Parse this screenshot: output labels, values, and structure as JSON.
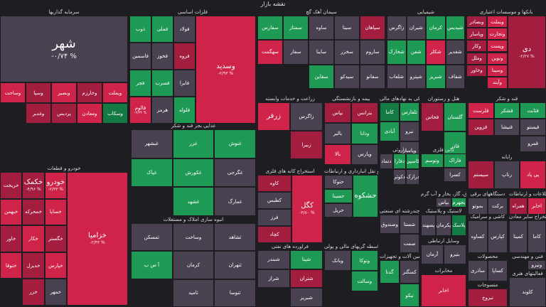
{
  "title": "نقشه بازار",
  "sectors": [
    {
      "label": "سرمایه گذاریها",
      "tiles": [
        {
          "sym": "شهر",
          "chg": "-۰/۷۴ %",
          "c": "n",
          "size": "big"
        },
        {
          "sym": "وبملت",
          "chg": "",
          "c": "r1"
        },
        {
          "sym": "وخارزم",
          "chg": "",
          "c": "r2"
        },
        {
          "sym": "وبصیر",
          "chg": "",
          "c": "r1"
        },
        {
          "sym": "وسپا",
          "chg": "",
          "c": "r2"
        },
        {
          "sym": "وساخت",
          "chg": "",
          "c": "r1"
        },
        {
          "sym": "وسکاب",
          "chg": "",
          "c": "g2"
        },
        {
          "sym": "ومعادن",
          "chg": "",
          "c": "r1"
        },
        {
          "sym": "پردیس",
          "chg": "",
          "c": "r2"
        },
        {
          "sym": "وغدیر",
          "chg": "",
          "c": "r2"
        }
      ]
    },
    {
      "label": "فلزات اساسی",
      "tiles": [
        {
          "sym": "وسدید",
          "chg": "-۲/۹۳ %",
          "c": "r1",
          "size": "mid"
        },
        {
          "sym": "فولاد",
          "chg": "",
          "c": "n"
        },
        {
          "sym": "فملی",
          "chg": "",
          "c": "g1"
        },
        {
          "sym": "ذوب",
          "chg": "",
          "c": "g1"
        },
        {
          "sym": "فروه",
          "chg": "",
          "c": "r2"
        },
        {
          "sym": "فخوز",
          "chg": "",
          "c": "n"
        },
        {
          "sym": "فاسمین",
          "chg": "",
          "c": "n"
        },
        {
          "sym": "فایرا",
          "chg": "",
          "c": "n"
        },
        {
          "sym": "فسرب",
          "chg": "",
          "c": "g1"
        },
        {
          "sym": "فجر",
          "chg": "",
          "c": "g1"
        },
        {
          "sym": "فلوله",
          "chg": "",
          "c": "g1"
        },
        {
          "sym": "هرمز",
          "chg": "",
          "c": "n"
        },
        {
          "sym": "فالوم",
          "chg": "-۴/۳۲ %",
          "c": "r1"
        }
      ]
    },
    {
      "label": "سیمان آهک گچ",
      "tiles": [
        {
          "sym": "سپاهان",
          "chg": "",
          "c": "r2"
        },
        {
          "sym": "سیتا",
          "chg": "",
          "c": "n"
        },
        {
          "sym": "ساوه",
          "chg": "",
          "c": "n"
        },
        {
          "sym": "سمتاز",
          "chg": "",
          "c": "g1"
        },
        {
          "sym": "سفارس",
          "chg": "",
          "c": "g1"
        },
        {
          "sym": "ساروم",
          "chg": "",
          "c": "n"
        },
        {
          "sym": "سخزر",
          "chg": "",
          "c": "n"
        },
        {
          "sym": "ساینا",
          "chg": "",
          "c": "n"
        },
        {
          "sym": "سفار",
          "chg": "",
          "c": "n"
        },
        {
          "sym": "سهگمت",
          "chg": "",
          "c": "r1"
        },
        {
          "sym": "سفانو",
          "chg": "",
          "c": "n"
        },
        {
          "sym": "سیدکو",
          "chg": "",
          "c": "n"
        },
        {
          "sym": "سقاین",
          "chg": "",
          "c": "g1"
        }
      ]
    },
    {
      "label": "شیمیایی",
      "tiles": [
        {
          "sym": "شپدیس",
          "chg": "",
          "c": "g1"
        },
        {
          "sym": "کرمان",
          "chg": "",
          "c": "g1"
        },
        {
          "sym": "شیران",
          "chg": "",
          "c": "n"
        },
        {
          "sym": "زاگرس",
          "chg": "",
          "c": "n"
        },
        {
          "sym": "شغدیر",
          "chg": "",
          "c": "n"
        },
        {
          "sym": "شکلر",
          "chg": "",
          "c": "r1"
        },
        {
          "sym": "شفن",
          "chg": "",
          "c": "g1"
        },
        {
          "sym": "شخارک",
          "chg": "",
          "c": "g1"
        },
        {
          "sym": "شفاف",
          "chg": "",
          "c": "n"
        },
        {
          "sym": "شبریز",
          "chg": "",
          "c": "g1"
        },
        {
          "sym": "شپترو",
          "chg": "",
          "c": "n"
        },
        {
          "sym": "شلعاب",
          "chg": "",
          "c": "n"
        }
      ]
    },
    {
      "label": "بانکها و موسسات اعتباری",
      "tiles": [
        {
          "sym": "دی",
          "chg": "-۲/۲۷ %",
          "c": "r2",
          "size": "mid"
        },
        {
          "sym": "وبملت",
          "chg": "",
          "c": "r1"
        },
        {
          "sym": "وبصادر",
          "chg": "",
          "c": "r2"
        },
        {
          "sym": "وتجارت",
          "chg": "",
          "c": "r1"
        },
        {
          "sym": "وپاسار",
          "chg": "",
          "c": "r2"
        },
        {
          "sym": "وپست",
          "chg": "",
          "c": "r1"
        },
        {
          "sym": "وکار",
          "chg": "",
          "c": "r2"
        },
        {
          "sym": "ونوین",
          "chg": "",
          "c": "r1"
        },
        {
          "sym": "وملل",
          "chg": "",
          "c": "r2"
        },
        {
          "sym": "وسینا",
          "chg": "",
          "c": "r1"
        },
        {
          "sym": "وخاور",
          "chg": "",
          "c": "r2"
        },
        {
          "sym": "وآیند",
          "chg": "",
          "c": "r1"
        }
      ]
    },
    {
      "label": "خودرو و قطعات",
      "tiles": [
        {
          "sym": "خزامیا",
          "chg": "-۲/۴۳ %",
          "c": "r1",
          "size": "mid"
        },
        {
          "sym": "خودرو",
          "chg": "-۲/۳۳ %",
          "c": "r1",
          "size": "mid"
        },
        {
          "sym": "خکمک",
          "chg": "-۴/۹۶ %",
          "c": "r2",
          "size": "mid"
        },
        {
          "sym": "خریخت",
          "chg": "",
          "c": "r2"
        },
        {
          "sym": "خساپا",
          "chg": "",
          "c": "r1"
        },
        {
          "sym": "خمحرکه",
          "chg": "",
          "c": "r2"
        },
        {
          "sym": "خبهمن",
          "chg": "",
          "c": "r1"
        },
        {
          "sym": "خگستر",
          "chg": "",
          "c": "r2"
        },
        {
          "sym": "خکار",
          "chg": "",
          "c": "r1"
        },
        {
          "sym": "خاور",
          "chg": "",
          "c": "r2"
        },
        {
          "sym": "خپارس",
          "chg": "",
          "c": "r1"
        },
        {
          "sym": "خدیزل",
          "chg": "",
          "c": "r2"
        },
        {
          "sym": "ختوقا",
          "chg": "",
          "c": "r1"
        },
        {
          "sym": "خمهر",
          "chg": "",
          "c": "n"
        },
        {
          "sym": "خزر",
          "chg": "",
          "c": "r2"
        }
      ]
    },
    {
      "label": "غذایی بجز قند و شکر",
      "tiles": [
        {
          "sym": "غنوش",
          "chg": "",
          "c": "g1"
        },
        {
          "sym": "غزر",
          "chg": "",
          "c": "g1"
        },
        {
          "sym": "غبشهر",
          "chg": "",
          "c": "n"
        },
        {
          "sym": "غگرجی",
          "chg": "",
          "c": "n"
        },
        {
          "sym": "غکورش",
          "chg": "",
          "c": "g1"
        },
        {
          "sym": "غپاک",
          "chg": "",
          "c": "g1"
        },
        {
          "sym": "غمارگ",
          "chg": "",
          "c": "n"
        },
        {
          "sym": "غشهد",
          "chg": "",
          "c": "g1"
        }
      ]
    },
    {
      "label": "عرضه برق",
      "tiles": [
        {
          "sym": "عالیس",
          "chg": "+۳/۱۷ %",
          "c": "g1",
          "size": "mid"
        }
      ]
    },
    {
      "label": "انبوه سازی املاک و مستغلات",
      "tiles": [
        {
          "sym": "ثشاهد",
          "chg": "",
          "c": "n"
        },
        {
          "sym": "وساخت",
          "chg": "",
          "c": "n"
        },
        {
          "sym": "ثمسکن",
          "chg": "",
          "c": "n"
        },
        {
          "sym": "ثتهران",
          "chg": "",
          "c": "n"
        },
        {
          "sym": "کرمان",
          "chg": "",
          "c": "n"
        },
        {
          "sym": "آ س پ",
          "chg": "",
          "c": "g1"
        },
        {
          "sym": "ثنوسا",
          "chg": "",
          "c": "n"
        },
        {
          "sym": "ثامید",
          "chg": "",
          "c": "n"
        }
      ]
    },
    {
      "label": "تلفارس",
      "tiles": [
        {
          "sym": "تلفارس",
          "chg": "",
          "c": "g1",
          "size": "mid"
        },
        {
          "sym": "کیسون",
          "chg": "",
          "c": "g1"
        },
        {
          "sym": "ترتیس",
          "chg": "",
          "c": "g1"
        },
        {
          "sym": "تاپیکو",
          "chg": "",
          "c": "g1"
        },
        {
          "sym": "تجلوب",
          "chg": "",
          "c": "g1"
        },
        {
          "sym": "تشار",
          "chg": "",
          "c": "n"
        },
        {
          "sym": "تپولاد",
          "chg": "",
          "c": "n"
        }
      ]
    },
    {
      "label": "زراعت و خدمات وابسته",
      "tiles": [
        {
          "sym": "زاگرس",
          "chg": "",
          "c": "n"
        },
        {
          "sym": "زرفر",
          "chg": "",
          "c": "r1",
          "size": "mid"
        },
        {
          "sym": "زبیرا",
          "chg": "",
          "c": "r2"
        }
      ]
    },
    {
      "label": "بیمه و بازنشستگی",
      "tiles": [
        {
          "sym": "بترانس",
          "chg": "",
          "c": "r2"
        },
        {
          "sym": "بپاس",
          "chg": "",
          "c": "r2"
        },
        {
          "sym": "ودانا",
          "chg": "",
          "c": "g1"
        },
        {
          "sym": "بالبر",
          "chg": "",
          "c": "n"
        },
        {
          "sym": "وپارس",
          "chg": "",
          "c": "n"
        },
        {
          "sym": "بالا",
          "chg": "",
          "c": "r1"
        }
      ]
    },
    {
      "label": "فعالیتهای کمکی به نهادهای مالی",
      "tiles": [
        {
          "sym": "تلفارس",
          "chg": "",
          "c": "g1"
        },
        {
          "sym": "کاما",
          "chg": "",
          "c": "g2"
        },
        {
          "sym": "نیرو",
          "chg": "",
          "c": "n"
        },
        {
          "sym": "آبادی",
          "chg": "",
          "c": "g1"
        },
        {
          "sym": "وپاسار",
          "chg": "",
          "c": "n"
        }
      ]
    },
    {
      "label": "هتل و رستوران",
      "tiles": [
        {
          "sym": "گلستان",
          "chg": "",
          "c": "g1"
        },
        {
          "sym": "فخاس",
          "chg": "",
          "c": "r2"
        },
        {
          "sym": "فاذر",
          "chg": "",
          "c": "g1"
        }
      ]
    },
    {
      "label": "قند و شکر",
      "tiles": [
        {
          "sym": "قثابت",
          "chg": "",
          "c": "g1"
        },
        {
          "sym": "قشکر",
          "chg": "",
          "c": "g1"
        },
        {
          "sym": "قلرست",
          "chg": "",
          "c": "r1"
        },
        {
          "sym": "قیستو",
          "chg": "",
          "c": "n"
        },
        {
          "sym": "قنیشا",
          "chg": "",
          "c": "n"
        },
        {
          "sym": "قزوین",
          "chg": "",
          "c": "r2"
        },
        {
          "sym": "قمرو",
          "chg": "",
          "c": "n"
        }
      ]
    },
    {
      "label": "استخراج کانه های فلزی",
      "tiles": [
        {
          "sym": "کگل",
          "chg": "-۳/۸۰ %",
          "c": "r1",
          "size": "mid"
        },
        {
          "sym": "کاوه",
          "chg": "",
          "c": "r2"
        },
        {
          "sym": "کطبس",
          "chg": "",
          "c": "n"
        },
        {
          "sym": "فرز",
          "chg": "",
          "c": "n"
        },
        {
          "sym": "کچاد",
          "chg": "",
          "c": "r2"
        }
      ]
    },
    {
      "label": "حمل و نقل انبارداری و ارتباطات",
      "tiles": [
        {
          "sym": "حشکوه",
          "chg": "",
          "c": "g1",
          "size": "mid"
        },
        {
          "sym": "حتوکا",
          "chg": "",
          "c": "n"
        },
        {
          "sym": "حسینا",
          "chg": "",
          "c": "g1"
        },
        {
          "sym": "حریل",
          "chg": "",
          "c": "n"
        }
      ]
    },
    {
      "label": "داروئی",
      "tiles": [
        {
          "sym": "کاسپی",
          "chg": "",
          "c": "g1"
        },
        {
          "sym": "دفارا",
          "chg": "",
          "c": "g1"
        },
        {
          "sym": "دتماد",
          "chg": "",
          "c": "n"
        },
        {
          "sym": "درازک",
          "chg": "",
          "c": "n"
        },
        {
          "sym": "دکوثر",
          "chg": "",
          "c": "n"
        }
      ]
    },
    {
      "label": "کانی فلزی",
      "tiles": [
        {
          "sym": "فاراک",
          "chg": "",
          "c": "g1"
        },
        {
          "sym": "وتوسم",
          "chg": "",
          "c": "g1"
        },
        {
          "sym": "کسرا",
          "chg": "",
          "c": "n"
        }
      ]
    },
    {
      "label": "رایانه",
      "tiles": [
        {
          "sym": "پی پاد",
          "chg": "",
          "c": "r1"
        },
        {
          "sym": "رتاپ",
          "chg": "",
          "c": "n"
        },
        {
          "sym": "سیستم",
          "chg": "",
          "c": "r2"
        }
      ]
    },
    {
      "label": "چندرشته ای صنعتی",
      "tiles": [
        {
          "sym": "شستا",
          "chg": "",
          "c": "n"
        },
        {
          "sym": "وصندوق",
          "chg": "",
          "c": "n"
        },
        {
          "sym": "صمت",
          "chg": "",
          "c": "n"
        }
      ]
    },
    {
      "label": "عرضه برق، گاز، بخار و آب گرم",
      "tiles": [
        {
          "sym": "بجهرم",
          "chg": "",
          "c": "g1"
        },
        {
          "sym": "بپاس",
          "chg": "",
          "c": "n"
        }
      ]
    },
    {
      "label": "لاستیک و پلاستیک",
      "tiles": [
        {
          "sym": "پلاسک",
          "chg": "",
          "c": "g2"
        },
        {
          "sym": "پکرمان",
          "chg": "",
          "c": "n"
        },
        {
          "sym": "پسهند",
          "chg": "",
          "c": "n"
        }
      ]
    },
    {
      "label": "دستگاههای برقی",
      "tiles": [
        {
          "sym": "برکت",
          "chg": "",
          "c": "n"
        },
        {
          "sym": "بموتو",
          "chg": "",
          "c": "n"
        }
      ]
    },
    {
      "label": "اطلاعات و ارتباطات",
      "tiles": [
        {
          "sym": "اخابر",
          "chg": "",
          "c": "r1"
        },
        {
          "sym": "همراه",
          "chg": "",
          "c": "r2"
        }
      ]
    },
    {
      "label": "فراورده های نفتی",
      "tiles": [
        {
          "sym": "شپنا",
          "chg": "",
          "c": "g1"
        },
        {
          "sym": "شبندر",
          "chg": "",
          "c": "n"
        },
        {
          "sym": "شتران",
          "chg": "",
          "c": "r2"
        },
        {
          "sym": "شراز",
          "chg": "",
          "c": "n"
        },
        {
          "sym": "شبریز",
          "chg": "",
          "c": "n"
        }
      ]
    },
    {
      "label": "واسطه گریهای مالی و پولی",
      "tiles": [
        {
          "sym": "وتوکا",
          "chg": "",
          "c": "g1"
        },
        {
          "sym": "وبانک",
          "chg": "",
          "c": "n"
        },
        {
          "sym": "وسالت",
          "chg": "",
          "c": "g1"
        }
      ]
    },
    {
      "label": "ماشین آلات و تجهیزات",
      "tiles": [
        {
          "sym": "کمنگنز",
          "chg": "",
          "c": "n"
        },
        {
          "sym": "گدنا",
          "chg": "",
          "c": "g1"
        },
        {
          "sym": "تیکو",
          "chg": "",
          "c": "g1"
        }
      ]
    },
    {
      "label": "وسایل ارتباطی",
      "tiles": [
        {
          "sym": "بنیرو",
          "chg": "",
          "c": "n"
        },
        {
          "sym": "آرمان",
          "chg": "",
          "c": "n"
        }
      ]
    },
    {
      "label": "محصولات",
      "tiles": [
        {
          "sym": "کساپا",
          "chg": "",
          "c": "n"
        },
        {
          "sym": "ساذری",
          "chg": "",
          "c": "n"
        }
      ]
    },
    {
      "label": "مخابرات",
      "tiles": [
        {
          "sym": "اخابر",
          "chg": "",
          "c": "r1"
        }
      ]
    },
    {
      "label": "کاشی و سرامیک",
      "tiles": [
        {
          "sym": "کپارس",
          "chg": "",
          "c": "n"
        },
        {
          "sym": "کساوه",
          "chg": "",
          "c": "n"
        }
      ]
    },
    {
      "label": "استخراج سایر معادن",
      "tiles": [
        {
          "sym": "کاما",
          "chg": "",
          "c": "n"
        },
        {
          "sym": "کمینا",
          "chg": "",
          "c": "n"
        }
      ]
    },
    {
      "label": "فنی و مهندسی",
      "tiles": [
        {
          "sym": "ونیرو",
          "chg": "",
          "c": "n"
        }
      ]
    },
    {
      "label": "منسوجات",
      "tiles": [
        {
          "sym": "نبروج",
          "chg": "",
          "c": "r2"
        }
      ]
    },
    {
      "label": "فعالیتهای هنری",
      "tiles": [
        {
          "sym": "کلوند",
          "chg": "",
          "c": "n"
        }
      ]
    }
  ]
}
